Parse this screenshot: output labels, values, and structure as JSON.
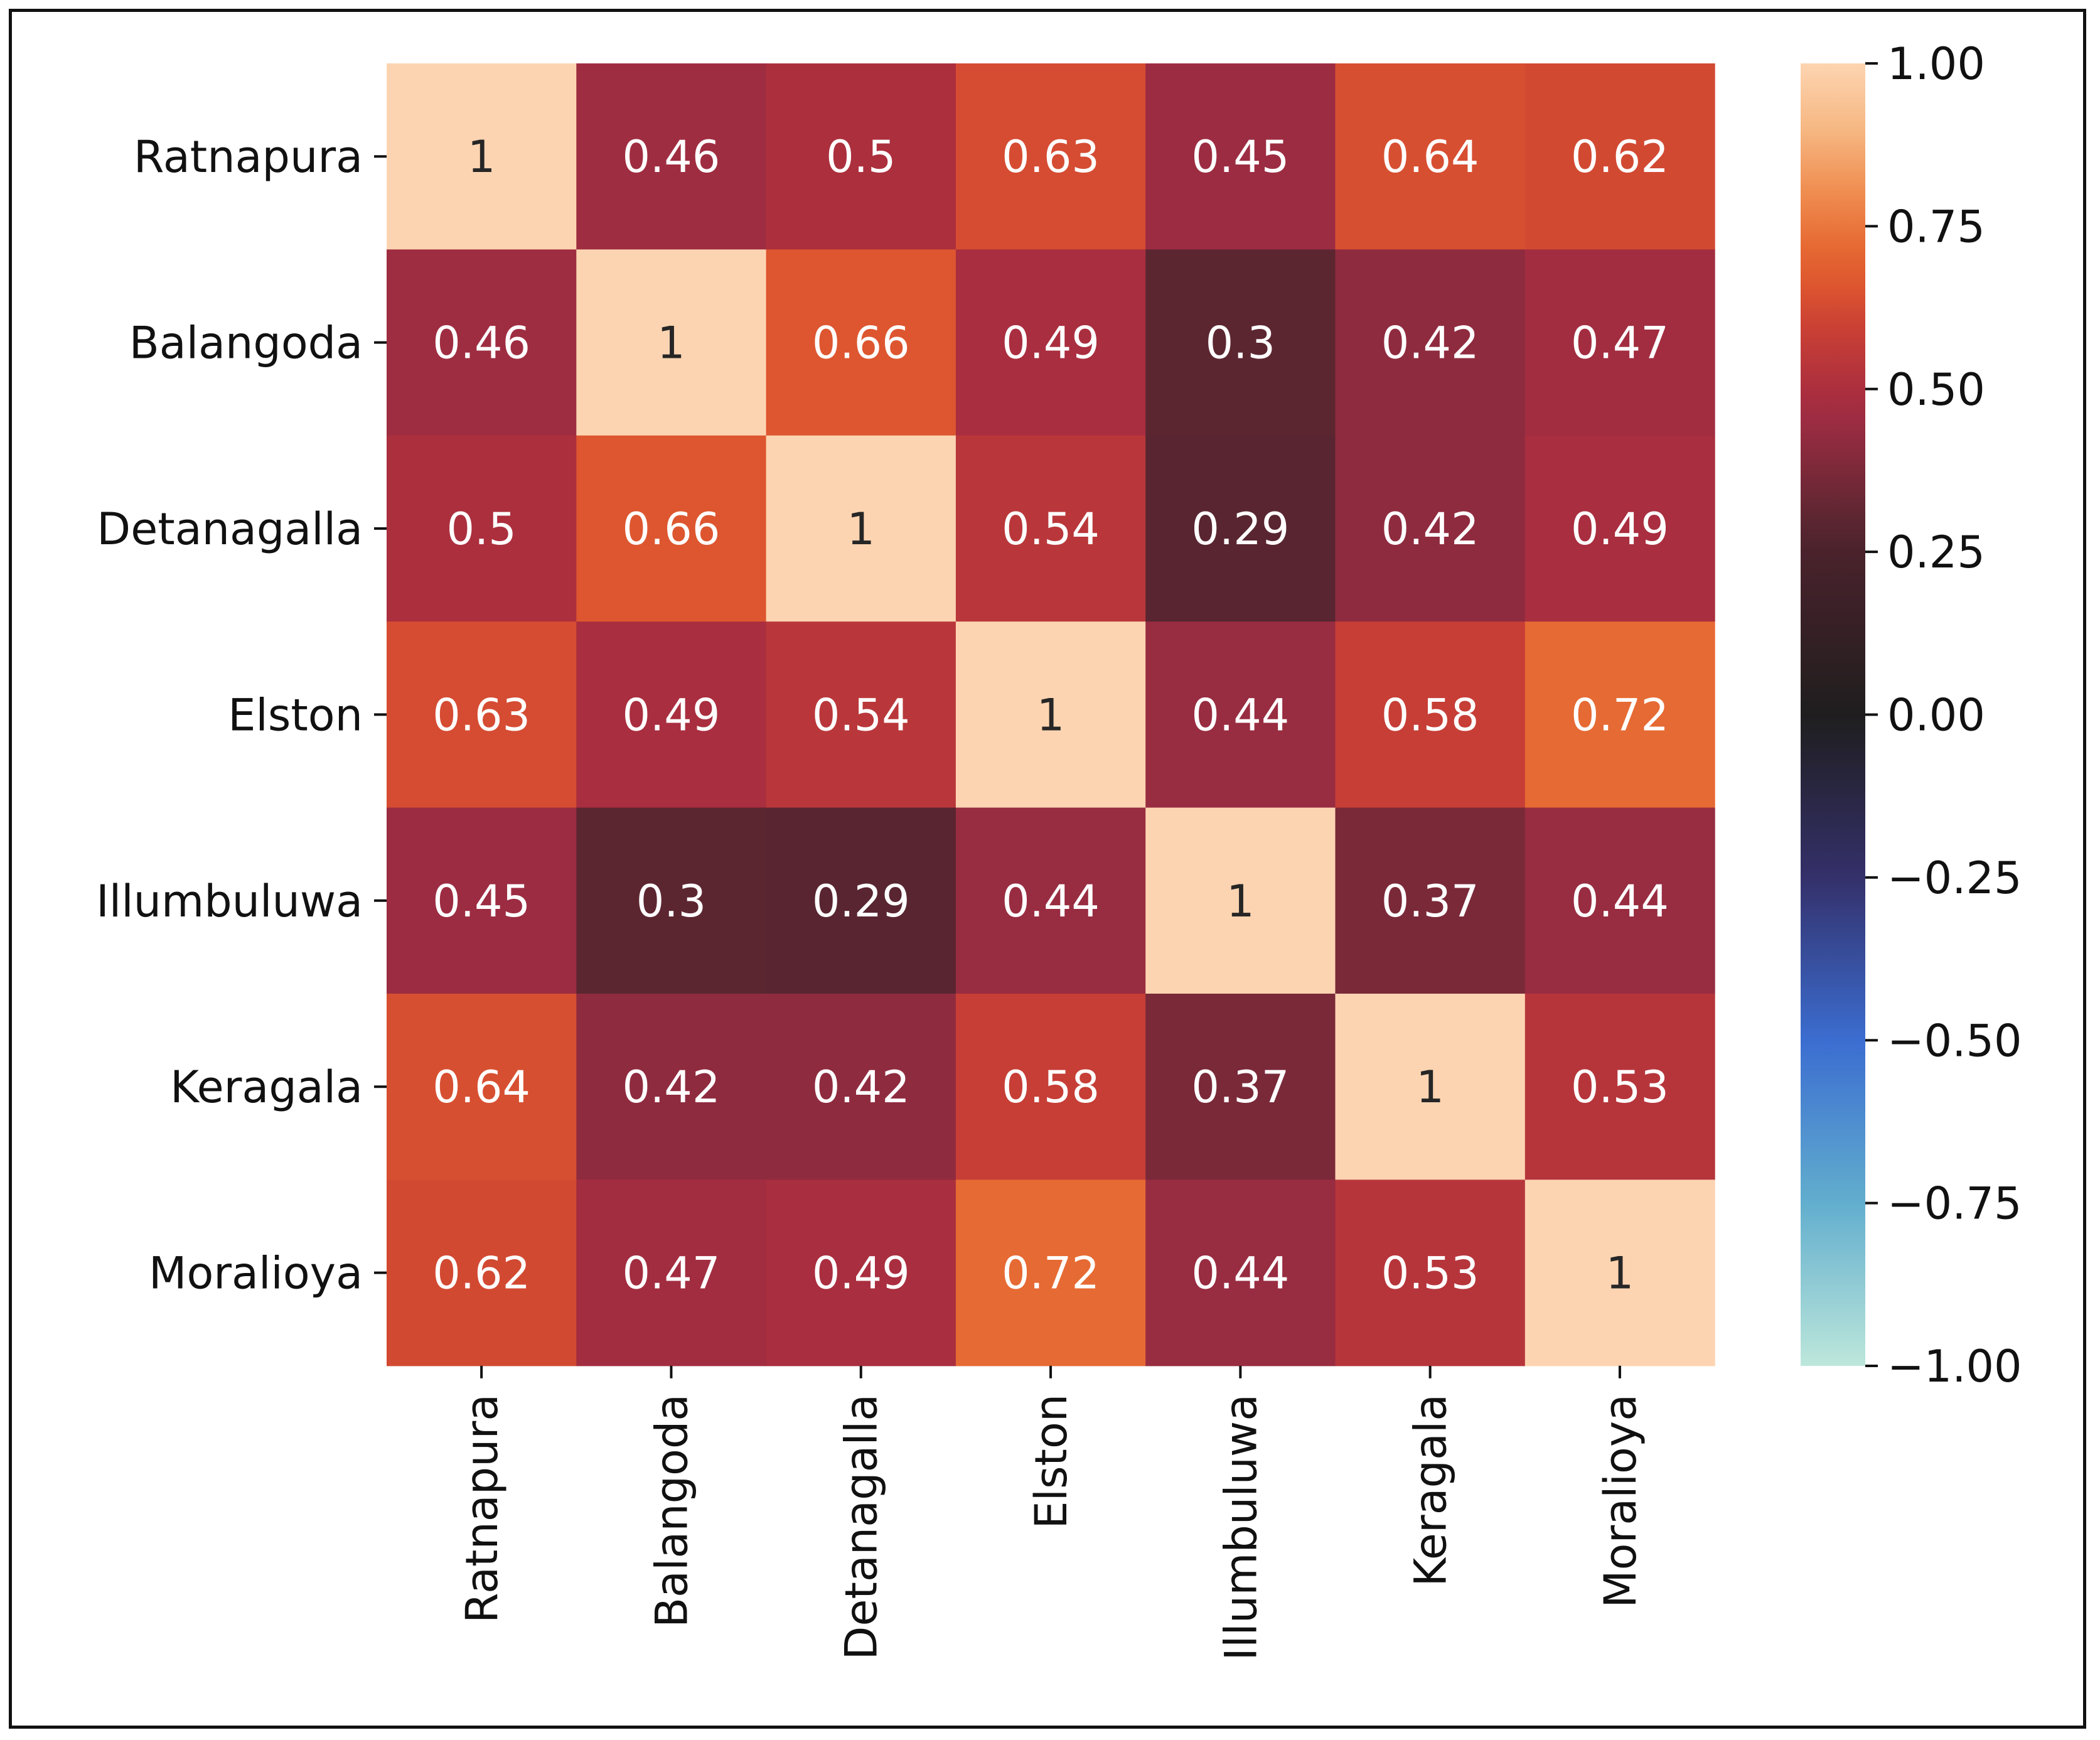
{
  "chart_data": {
    "type": "heatmap",
    "title": "",
    "xlabel": "",
    "ylabel": "",
    "row_labels": [
      "Ratnapura",
      "Balangoda",
      "Detanagalla",
      "Elston",
      "Illumbuluwa",
      "Keragala",
      "Moralioya"
    ],
    "col_labels": [
      "Ratnapura",
      "Balangoda",
      "Detanagalla",
      "Elston",
      "Illumbuluwa",
      "Keragala",
      "Moralioya"
    ],
    "values": [
      [
        1,
        0.46,
        0.5,
        0.63,
        0.45,
        0.64,
        0.62
      ],
      [
        0.46,
        1,
        0.66,
        0.49,
        0.3,
        0.42,
        0.47
      ],
      [
        0.5,
        0.66,
        1,
        0.54,
        0.29,
        0.42,
        0.49
      ],
      [
        0.63,
        0.49,
        0.54,
        1,
        0.44,
        0.58,
        0.72
      ],
      [
        0.45,
        0.3,
        0.29,
        0.44,
        1,
        0.37,
        0.44
      ],
      [
        0.64,
        0.42,
        0.42,
        0.58,
        0.37,
        1,
        0.53
      ],
      [
        0.62,
        0.47,
        0.49,
        0.72,
        0.44,
        0.53,
        1
      ]
    ],
    "annotations": [
      [
        "1",
        "0.46",
        "0.5",
        "0.63",
        "0.45",
        "0.64",
        "0.62"
      ],
      [
        "0.46",
        "1",
        "0.66",
        "0.49",
        "0.3",
        "0.42",
        "0.47"
      ],
      [
        "0.5",
        "0.66",
        "1",
        "0.54",
        "0.29",
        "0.42",
        "0.49"
      ],
      [
        "0.63",
        "0.49",
        "0.54",
        "1",
        "0.44",
        "0.58",
        "0.72"
      ],
      [
        "0.45",
        "0.3",
        "0.29",
        "0.44",
        "1",
        "0.37",
        "0.44"
      ],
      [
        "0.64",
        "0.42",
        "0.42",
        "0.58",
        "0.37",
        "1",
        "0.53"
      ],
      [
        "0.62",
        "0.47",
        "0.49",
        "0.72",
        "0.44",
        "0.53",
        "1"
      ]
    ],
    "colorbar": {
      "range": [
        -1.0,
        1.0
      ],
      "ticks": [
        1.0,
        0.75,
        0.5,
        0.25,
        0.0,
        -0.25,
        -0.5,
        -0.75,
        -1.0
      ],
      "tick_labels": [
        "1.00",
        "0.75",
        "0.50",
        "0.25",
        "0.00",
        "−0.25",
        "−0.50",
        "−0.75",
        "−1.00"
      ],
      "colormap": "icefire",
      "color_stops": [
        {
          "value": -1.0,
          "color": "#bde7db"
        },
        {
          "value": -0.75,
          "color": "#62aece"
        },
        {
          "value": -0.5,
          "color": "#3b6dd0"
        },
        {
          "value": -0.25,
          "color": "#34306a"
        },
        {
          "value": 0.0,
          "color": "#1f1e1e"
        },
        {
          "value": 0.25,
          "color": "#4a222c"
        },
        {
          "value": 0.3,
          "color": "#5c2631"
        },
        {
          "value": 0.45,
          "color": "#9c2c42"
        },
        {
          "value": 0.5,
          "color": "#ac2f3e"
        },
        {
          "value": 0.6,
          "color": "#cc4234"
        },
        {
          "value": 0.66,
          "color": "#dd562f"
        },
        {
          "value": 0.72,
          "color": "#e66a33"
        },
        {
          "value": 0.8,
          "color": "#ef8c4f"
        },
        {
          "value": 0.9,
          "color": "#f6b883"
        },
        {
          "value": 1.0,
          "color": "#fdd4b1"
        }
      ]
    },
    "text_colors": {
      "light_cells": "#262626",
      "dark_cells": "#ffffff"
    }
  }
}
